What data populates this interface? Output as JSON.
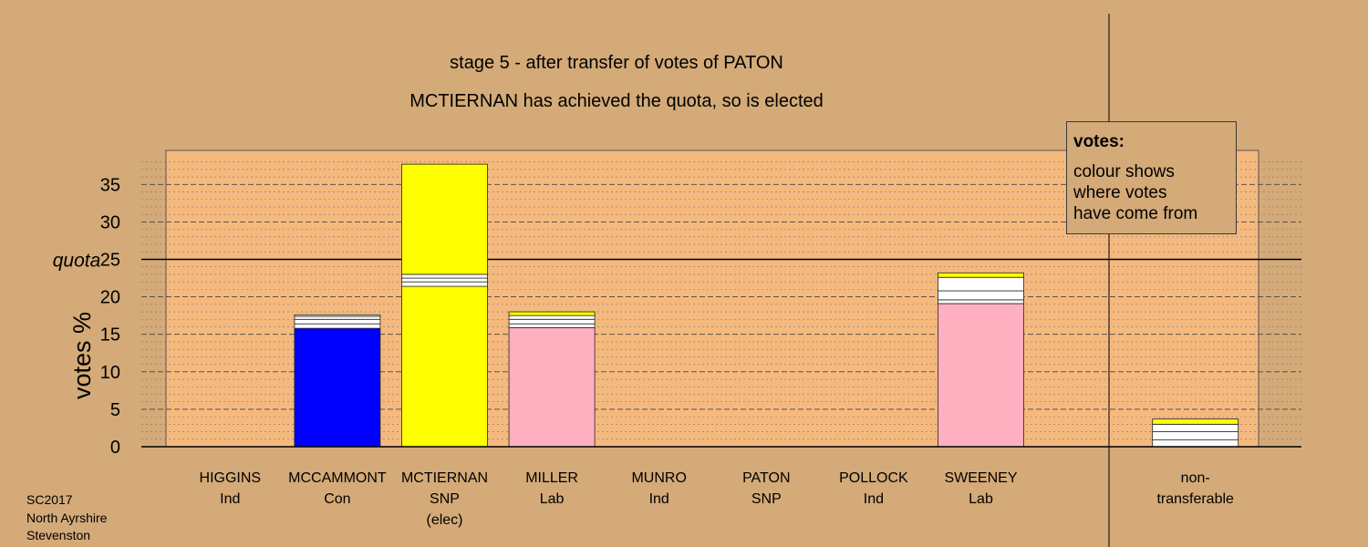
{
  "header": {
    "title": "stage 5 - after transfer of votes of PATON",
    "subtitle": "MCTIERNAN has achieved the quota, so is elected"
  },
  "legend": {
    "title": "votes:",
    "lines": [
      "colour shows",
      "where votes",
      "have come from"
    ]
  },
  "footer": {
    "lines": [
      "SC2017",
      "North Ayrshire",
      "Stevenston"
    ]
  },
  "colors": {
    "background": "#d4aa78",
    "plot_background": "#f5b97e",
    "Ind": "#ffffff",
    "Con": "#0000ff",
    "SNP": "#ffff00",
    "Lab": "#ffb0c0"
  },
  "chart_data": {
    "type": "bar",
    "stacked": true,
    "ylabel": "votes %",
    "ylim": [
      0,
      38
    ],
    "yticks": [
      0,
      5,
      10,
      15,
      20,
      25,
      30,
      35
    ],
    "quota": 25,
    "quota_label": "quota",
    "grid": true,
    "categories": [
      {
        "name": "HIGGINS",
        "party": "Ind",
        "note": ""
      },
      {
        "name": "MCCAMMONT",
        "party": "Con",
        "note": ""
      },
      {
        "name": "MCTIERNAN",
        "party": "SNP",
        "note": "(elec)"
      },
      {
        "name": "MILLER",
        "party": "Lab",
        "note": ""
      },
      {
        "name": "MUNRO",
        "party": "Ind",
        "note": ""
      },
      {
        "name": "PATON",
        "party": "SNP",
        "note": ""
      },
      {
        "name": "POLLOCK",
        "party": "Ind",
        "note": ""
      },
      {
        "name": "SWEENEY",
        "party": "Lab",
        "note": ""
      },
      {
        "name": "",
        "party": "",
        "note": ""
      },
      {
        "name": "non-",
        "party": "transferable",
        "note": ""
      }
    ],
    "stacks": [
      [],
      [
        {
          "value": 15.8,
          "color": "#0000ff"
        },
        {
          "value": 0.6,
          "color": "#ffffff"
        },
        {
          "value": 0.6,
          "color": "#ffffff"
        },
        {
          "value": 0.4,
          "color": "#ffffff"
        },
        {
          "value": 0.2,
          "color": "#ffffff"
        }
      ],
      [
        {
          "value": 21.4,
          "color": "#ffff00"
        },
        {
          "value": 0.6,
          "color": "#ffffff"
        },
        {
          "value": 0.5,
          "color": "#ffffff"
        },
        {
          "value": 0.5,
          "color": "#ffffff"
        },
        {
          "value": 14.7,
          "color": "#ffff00"
        }
      ],
      [
        {
          "value": 15.9,
          "color": "#ffb0c0"
        },
        {
          "value": 0.5,
          "color": "#ffffff"
        },
        {
          "value": 0.6,
          "color": "#ffffff"
        },
        {
          "value": 0.5,
          "color": "#ffffff"
        },
        {
          "value": 0.5,
          "color": "#ffff00"
        }
      ],
      [],
      [],
      [],
      [
        {
          "value": 19.1,
          "color": "#ffb0c0"
        },
        {
          "value": 0.5,
          "color": "#ffffff"
        },
        {
          "value": 1.2,
          "color": "#ffffff"
        },
        {
          "value": 1.8,
          "color": "#ffffff"
        },
        {
          "value": 0.6,
          "color": "#ffff00"
        }
      ],
      [],
      [
        {
          "value": 0.9,
          "color": "#ffffff"
        },
        {
          "value": 1.1,
          "color": "#ffffff"
        },
        {
          "value": 1.0,
          "color": "#ffffff"
        },
        {
          "value": 0.7,
          "color": "#ffff00"
        }
      ]
    ]
  }
}
